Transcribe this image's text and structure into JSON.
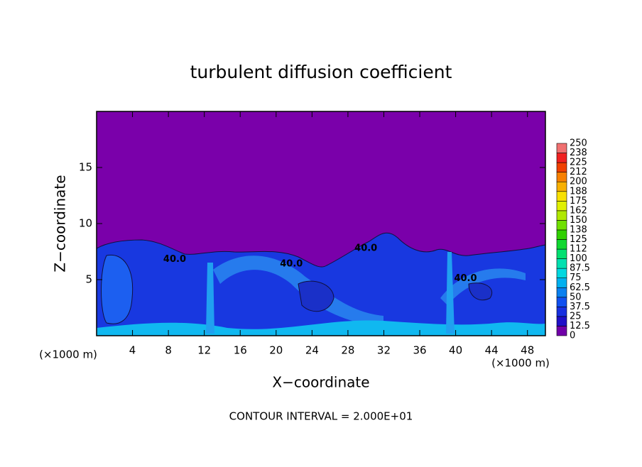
{
  "chart_data": {
    "type": "heatmap",
    "title": "turbulent diffusion coefficient",
    "x_label": "X−coordinate",
    "y_label": "Z−coordinate",
    "x_unit": "(×1000 m)",
    "note": "CONTOUR INTERVAL = 2.000E+01",
    "xlim": [
      0,
      50
    ],
    "xticks": [
      4,
      8,
      12,
      16,
      20,
      24,
      28,
      32,
      36,
      40,
      44,
      48
    ],
    "ylim": [
      0,
      20
    ],
    "yticks": [
      5,
      10,
      15
    ],
    "colorbar": {
      "levels": [
        0,
        12.5,
        25,
        37.5,
        50,
        62.5,
        75,
        87.5,
        100,
        {
          "value": 112.5,
          "label": "112"
        },
        125,
        {
          "value": 137.5,
          "label": "138"
        },
        150,
        {
          "value": 162.5,
          "label": "162"
        },
        175,
        {
          "value": 187.5,
          "label": "188"
        },
        200,
        {
          "value": 212.5,
          "label": "212"
        },
        225,
        {
          "value": 237.5,
          "label": "238"
        },
        250
      ],
      "colors": [
        "#7000a8",
        "#2010c8",
        "#1830e0",
        "#1050f0",
        "#0a80f0",
        "#00b0f0",
        "#00d8e0",
        "#00e0b0",
        "#00e070",
        "#10d830",
        "#30d000",
        "#70e000",
        "#b0e800",
        "#e0f000",
        "#f8e000",
        "#f8b000",
        "#f88000",
        "#f04000",
        "#f02020",
        "#f07070"
      ]
    },
    "contour_labels": [
      {
        "label": "40.0",
        "x": 8.7,
        "z": 6.8
      },
      {
        "label": "40.0",
        "x": 21.7,
        "z": 6.4
      },
      {
        "label": "40.0",
        "x": 30.0,
        "z": 7.8
      },
      {
        "label": "40.0",
        "x": 41.1,
        "z": 5.1
      }
    ]
  }
}
